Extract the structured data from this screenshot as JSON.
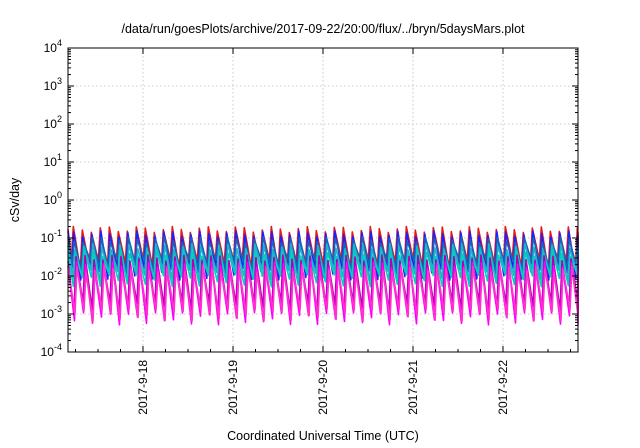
{
  "chart_data": {
    "type": "line",
    "title": "/data/run/goesPlots/archive/2017-09-22/20:00/flux/../bryn/5daysMars.plot",
    "xlabel": "Coordinated Universal Time (UTC)",
    "ylabel": "cSv/day",
    "y_scale": "log",
    "ylim": [
      0.0001,
      10000
    ],
    "xlim": [
      "2017-09-17T04:00",
      "2017-09-22T20:00"
    ],
    "y_ticks": [
      {
        "value": 0.0001,
        "base": "10",
        "exp": "-4"
      },
      {
        "value": 0.001,
        "base": "10",
        "exp": "-3"
      },
      {
        "value": 0.01,
        "base": "10",
        "exp": "-2"
      },
      {
        "value": 0.1,
        "base": "10",
        "exp": "-1"
      },
      {
        "value": 1,
        "base": "10",
        "exp": "0"
      },
      {
        "value": 10,
        "base": "10",
        "exp": "1"
      },
      {
        "value": 100,
        "base": "10",
        "exp": "2"
      },
      {
        "value": 1000,
        "base": "10",
        "exp": "3"
      },
      {
        "value": 10000,
        "base": "10",
        "exp": "4"
      }
    ],
    "x_ticks": [
      {
        "value": "2017-09-18T00:00",
        "label": "2017-9-18"
      },
      {
        "value": "2017-09-19T00:00",
        "label": "2017-9-19"
      },
      {
        "value": "2017-09-20T00:00",
        "label": "2017-9-20"
      },
      {
        "value": "2017-09-21T00:00",
        "label": "2017-9-21"
      },
      {
        "value": "2017-09-22T00:00",
        "label": "2017-9-22"
      }
    ],
    "grid": true,
    "legend": "none",
    "pattern": {
      "description_note": "periodic sawtooth; about 10 peaks per day",
      "peak_period_hours": 2.4
    },
    "series": [
      {
        "color": "#e41a1c",
        "peak": 0.17,
        "trough": 0.02
      },
      {
        "color": "#2020ff",
        "peak": 0.13,
        "trough": 0.012
      },
      {
        "color": "#1565c0",
        "peak": 0.09,
        "trough": 0.02
      },
      {
        "color": "#20b0c8",
        "peak": 0.06,
        "trough": 0.011
      },
      {
        "color": "#00d0c0",
        "peak": 0.04,
        "trough": 0.008
      },
      {
        "color": "#b000b0",
        "peak": 0.03,
        "trough": 0.0015
      },
      {
        "color": "#ff00ff",
        "peak": 0.02,
        "trough": 0.0008
      },
      {
        "color": "#ff33cc",
        "peak": 0.015,
        "trough": 0.001
      }
    ]
  }
}
